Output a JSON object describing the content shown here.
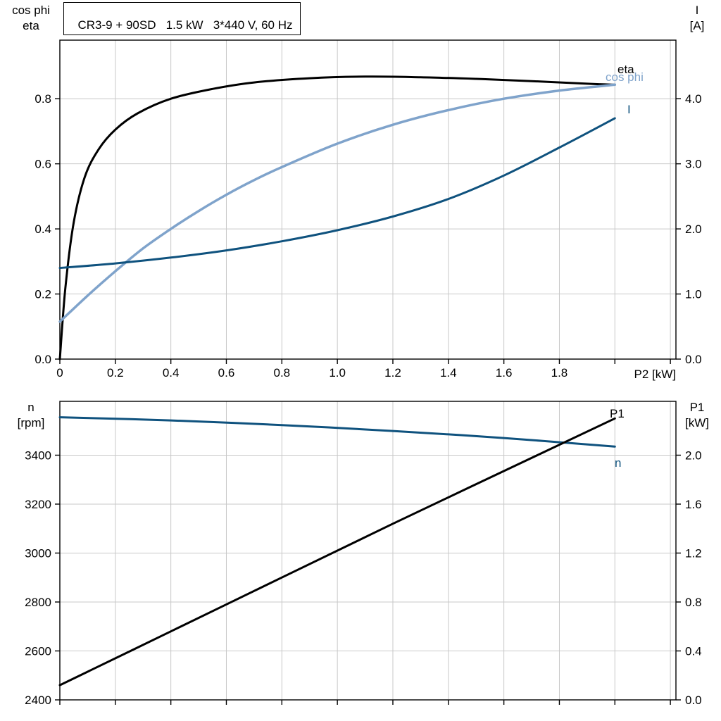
{
  "colors": {
    "black": "#000000",
    "light_blue": "#7fa3cb",
    "dark_blue": "#0f527e",
    "grid": "#c8c8c8",
    "frame": "#000000",
    "background": "#ffffff"
  },
  "chart_data": [
    {
      "type": "line",
      "title": "CR3-9 + 90SD   1.5 kW   3*440 V, 60 Hz",
      "legend_position": "curve-end-labels",
      "grid": "on",
      "x_axis": {
        "label": "P2 [kW]",
        "min": 0,
        "max": 2.22,
        "ticks": [
          0,
          0.2,
          0.4,
          0.6,
          0.8,
          1.0,
          1.2,
          1.4,
          1.6,
          1.8
        ],
        "tick_labels": [
          "0",
          "0.2",
          "0.4",
          "0.6",
          "0.8",
          "1.0",
          "1.2",
          "1.4",
          "1.6",
          "1.8"
        ],
        "grid_lines": [
          0.2,
          0.4,
          0.6,
          0.8,
          1.0,
          1.2,
          1.4,
          1.6,
          1.8,
          2.0,
          2.2
        ]
      },
      "y_left": {
        "label_lines": [
          "cos phi",
          "eta"
        ],
        "min": 0,
        "max": 0.98,
        "ticks": [
          0,
          0.2,
          0.4,
          0.6,
          0.8
        ],
        "tick_labels": [
          "0.0",
          "0.2",
          "0.4",
          "0.6",
          "0.8"
        ]
      },
      "y_right": {
        "label_lines": [
          "I",
          "[A]"
        ],
        "min": 0,
        "max": 4.9,
        "ticks": [
          0,
          1,
          2,
          3,
          4
        ],
        "tick_labels": [
          "0.0",
          "1.0",
          "2.0",
          "3.0",
          "4.0"
        ]
      },
      "series": [
        {
          "key": "eta",
          "name": "eta",
          "label": "eta",
          "axis": "left",
          "color": "black",
          "width": 3,
          "x": [
            0,
            0.02,
            0.05,
            0.09,
            0.14,
            0.2,
            0.28,
            0.4,
            0.55,
            0.7,
            0.9,
            1.1,
            1.3,
            1.5,
            1.7,
            1.9,
            2.0
          ],
          "y": [
            0,
            0.22,
            0.42,
            0.56,
            0.645,
            0.705,
            0.755,
            0.8,
            0.83,
            0.85,
            0.863,
            0.868,
            0.866,
            0.861,
            0.854,
            0.846,
            0.843
          ]
        },
        {
          "key": "cos-phi",
          "name": "cos phi",
          "label": "cos phi",
          "axis": "left",
          "color": "light_blue",
          "width": 3.5,
          "x": [
            0,
            0.1,
            0.2,
            0.3,
            0.4,
            0.5,
            0.6,
            0.7,
            0.8,
            1.0,
            1.2,
            1.4,
            1.6,
            1.8,
            2.0
          ],
          "y": [
            0.115,
            0.195,
            0.27,
            0.34,
            0.4,
            0.455,
            0.505,
            0.55,
            0.59,
            0.662,
            0.72,
            0.765,
            0.8,
            0.825,
            0.843
          ]
        },
        {
          "key": "current",
          "name": "I",
          "label": "I",
          "axis": "right",
          "color": "dark_blue",
          "width": 3,
          "x": [
            0,
            0.2,
            0.4,
            0.6,
            0.8,
            1.0,
            1.2,
            1.4,
            1.6,
            1.8,
            2.0
          ],
          "y": [
            1.4,
            1.47,
            1.56,
            1.67,
            1.81,
            1.98,
            2.19,
            2.46,
            2.82,
            3.25,
            3.7
          ]
        }
      ]
    },
    {
      "type": "line",
      "title": "",
      "legend_position": "curve-end-labels",
      "grid": "on",
      "x_axis": {
        "label": "",
        "min": 0,
        "max": 2.22,
        "ticks": [],
        "tick_labels": [],
        "grid_lines": [
          0.2,
          0.4,
          0.6,
          0.8,
          1.0,
          1.2,
          1.4,
          1.6,
          1.8,
          2.0,
          2.2
        ]
      },
      "y_left": {
        "label_lines": [
          "n",
          "[rpm]"
        ],
        "min": 2400,
        "max": 3620,
        "ticks": [
          2400,
          2600,
          2800,
          3000,
          3200,
          3400
        ],
        "tick_labels": [
          "2400",
          "2600",
          "2800",
          "3000",
          "3200",
          "3400"
        ]
      },
      "y_right": {
        "label_lines": [
          "P1",
          "[kW]"
        ],
        "min": 0,
        "max": 2.44,
        "ticks": [
          0,
          0.4,
          0.8,
          1.2,
          1.6,
          2.0
        ],
        "tick_labels": [
          "0.0",
          "0.4",
          "0.8",
          "1.2",
          "1.6",
          "2.0"
        ]
      },
      "series": [
        {
          "key": "speed",
          "name": "n",
          "label": "n",
          "axis": "left",
          "color": "dark_blue",
          "width": 3,
          "x": [
            0,
            0.4,
            0.8,
            1.2,
            1.6,
            2.0
          ],
          "y": [
            3555,
            3542,
            3523,
            3499,
            3470,
            3435
          ]
        },
        {
          "key": "p1",
          "name": "P1",
          "label": "P1",
          "axis": "right",
          "color": "black",
          "width": 3,
          "x": [
            0,
            0.4,
            0.8,
            1.2,
            1.6,
            2.0
          ],
          "y": [
            0.12,
            0.56,
            1.0,
            1.44,
            1.87,
            2.3
          ]
        }
      ]
    }
  ]
}
